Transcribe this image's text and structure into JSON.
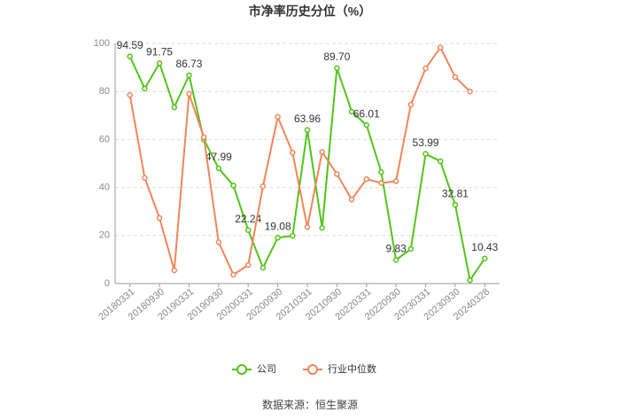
{
  "chart_data": {
    "type": "line",
    "title": "市净率历史分位（%）",
    "categories": [
      "20180331",
      null,
      "20180930",
      null,
      "20190331",
      null,
      "20190930",
      null,
      "20200331",
      null,
      "20200930",
      null,
      "20210331",
      null,
      "20210930",
      null,
      "20220331",
      null,
      "20220930",
      null,
      "20230331",
      null,
      "20230930",
      null,
      "20240328"
    ],
    "series": [
      {
        "name": "公司",
        "color": "#52c41a",
        "values": [
          94.59,
          81.2,
          91.75,
          73.4,
          86.73,
          60,
          47.99,
          40.8,
          22.24,
          6.6,
          19.08,
          19.9,
          63.96,
          23.2,
          89.7,
          71.6,
          66.01,
          46.4,
          9.83,
          14.4,
          53.99,
          50.9,
          32.81,
          1.4,
          10.43
        ],
        "value_labels": [
          "94.59",
          null,
          "91.75",
          null,
          "86.73",
          null,
          "47.99",
          null,
          "22.24",
          null,
          "19.08",
          null,
          "63.96",
          null,
          "89.70",
          null,
          "66.01",
          null,
          "9.83",
          null,
          "53.99",
          null,
          "32.81",
          null,
          "10.43"
        ]
      },
      {
        "name": "行业中位数",
        "color": "#f0855a",
        "values": [
          78.5,
          44,
          27.3,
          5.5,
          79,
          61,
          17.2,
          3.7,
          7.7,
          40.5,
          69.4,
          54.5,
          23.5,
          54.8,
          45.6,
          35,
          43.5,
          41.9,
          42.6,
          74.5,
          89.6,
          98.3,
          86,
          80,
          null
        ]
      }
    ],
    "ylim": [
      0,
      100
    ],
    "yticks": [
      0,
      20,
      40,
      60,
      80,
      100
    ],
    "grid": true,
    "source": "数据来源：恒生聚源"
  }
}
